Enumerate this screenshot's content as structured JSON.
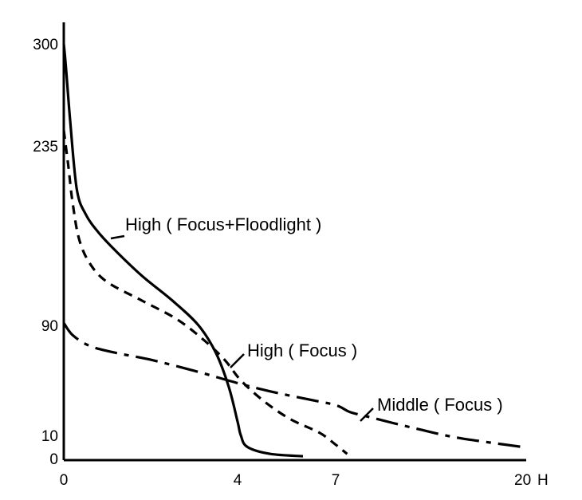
{
  "chart_data": {
    "type": "line",
    "title": "",
    "xlabel": "",
    "ylabel": "",
    "x_ticks": [
      "0",
      "4",
      "7",
      "20"
    ],
    "x_unit": "H",
    "y_ticks": [
      "0",
      "10",
      "90",
      "235",
      "300"
    ],
    "grid": false,
    "legend": "none",
    "series": [
      {
        "name": "High ( Focus+Floodlight )",
        "style": "solid",
        "x": [
          0,
          0.05,
          0.15,
          0.3,
          0.5,
          0.8,
          1.2,
          1.8,
          2.5,
          3.1,
          3.5,
          3.8,
          4.0,
          4.1,
          4.3,
          5.0,
          6.0
        ],
        "y": [
          300,
          285,
          250,
          200,
          180,
          165,
          150,
          130,
          110,
          90,
          70,
          45,
          20,
          10,
          5,
          2,
          1
        ]
      },
      {
        "name": "High ( Focus )",
        "style": "dashed",
        "x": [
          0,
          0.1,
          0.2,
          0.35,
          0.6,
          1.0,
          1.8,
          2.6,
          3.2,
          3.7,
          4.1,
          4.8,
          5.6,
          6.5,
          7.0,
          7.8
        ],
        "y": [
          245,
          220,
          190,
          160,
          140,
          125,
          110,
          95,
          80,
          65,
          50,
          35,
          22,
          12,
          6,
          2
        ]
      },
      {
        "name": "Middle ( Focus )",
        "style": "dash-dot",
        "x": [
          0,
          0.2,
          0.6,
          1.2,
          2.0,
          3.0,
          4.0,
          5.0,
          6.0,
          7.0,
          8.0,
          9.5,
          11,
          13,
          15.5,
          20
        ],
        "y": [
          92,
          83,
          75,
          70,
          65,
          57,
          48,
          42,
          37,
          32,
          27,
          23,
          19,
          14,
          9,
          5
        ]
      }
    ]
  }
}
